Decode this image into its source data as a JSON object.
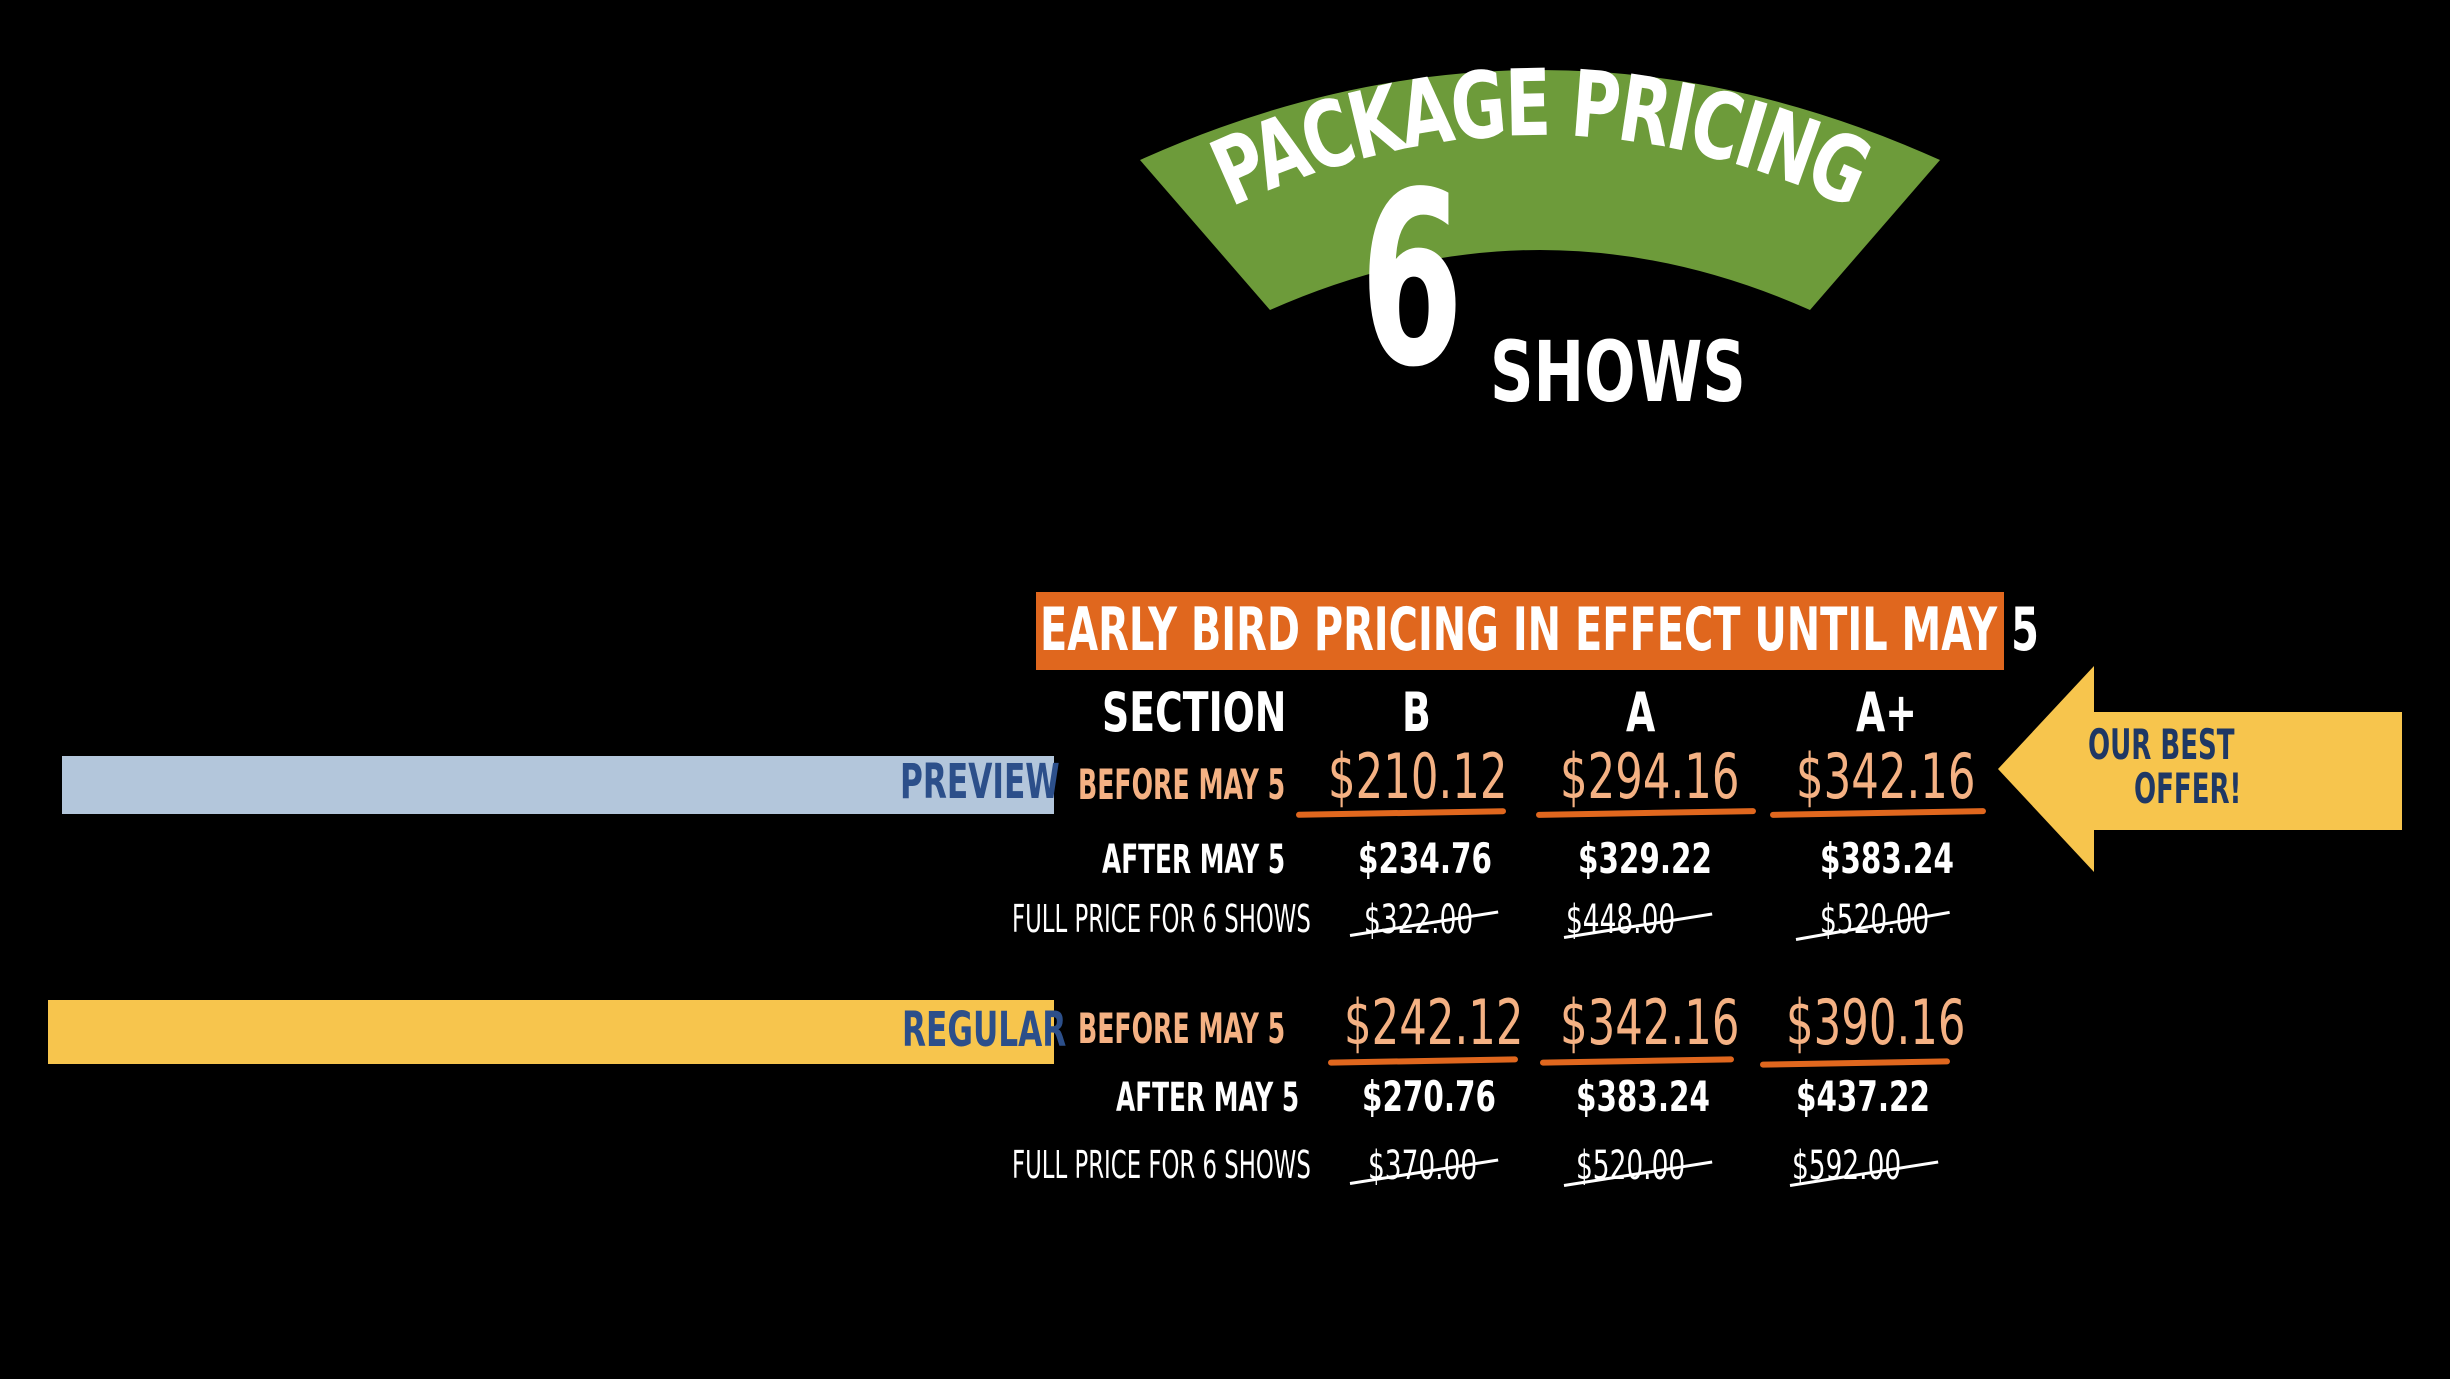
{
  "header": {
    "arc_title": "PACKAGE PRICING",
    "count": "6",
    "count_suffix": "SHOWS",
    "arc_color": "#6d9b3a"
  },
  "banner": {
    "text": "EARLY BIRD PRICING IN EFFECT UNTIL MAY 5",
    "color": "#e0671e"
  },
  "columns": {
    "section_label": "SECTION",
    "b": "B",
    "a": "A",
    "a_plus": "A+"
  },
  "preview": {
    "name": "PREVIEW",
    "bar_color": "#b3c6db",
    "before_label": "BEFORE MAY 5",
    "after_label": "AFTER MAY 5",
    "full_label": "FULL PRICE FOR 6 SHOWS",
    "before": [
      "$210.12",
      "$294.16",
      "$342.16"
    ],
    "after": [
      "$234.76",
      "$329.22",
      "$383.24"
    ],
    "full": [
      "$322.00",
      "$448.00",
      "$520.00"
    ]
  },
  "regular": {
    "name": "REGULAR",
    "bar_color": "#f7c54d",
    "before_label": "BEFORE MAY 5",
    "after_label": "AFTER MAY 5",
    "full_label": "FULL PRICE FOR 6 SHOWS",
    "before": [
      "$242.12",
      "$342.16",
      "$390.16"
    ],
    "after": [
      "$270.76",
      "$383.24",
      "$437.22"
    ],
    "full": [
      "$370.00",
      "$520.00",
      "$592.00"
    ]
  },
  "callout": {
    "line1": "OUR BEST",
    "line2": "OFFER!",
    "color": "#f7c54d"
  }
}
